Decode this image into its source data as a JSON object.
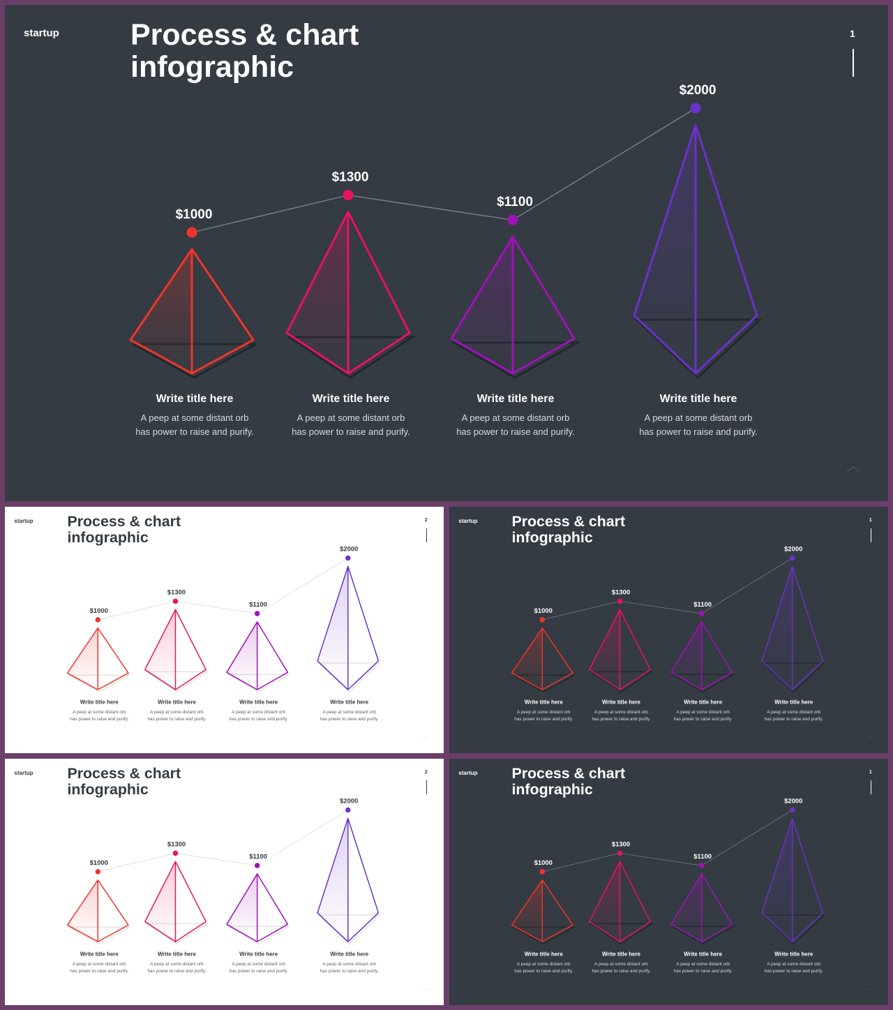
{
  "brand": "startup",
  "title": {
    "line1": "Process & chart",
    "line2": "infographic"
  },
  "item_title": "Write title here",
  "item_desc": {
    "line1": "A peep at some distant orb",
    "line2": "has power to raise and purify."
  },
  "slides": [
    {
      "theme": "dark",
      "page_number": "1"
    },
    {
      "theme": "light",
      "page_number": "2"
    },
    {
      "theme": "dark",
      "page_number": "1"
    },
    {
      "theme": "light",
      "page_number": "2"
    },
    {
      "theme": "dark",
      "page_number": "1"
    }
  ],
  "chart_data": {
    "type": "line",
    "categories": [
      "Write title here",
      "Write title here",
      "Write title here",
      "Write title here"
    ],
    "values": [
      1000,
      1300,
      1100,
      2000
    ],
    "value_labels": [
      "$1000",
      "$1300",
      "$1100",
      "$2000"
    ],
    "colors": [
      "#f0342c",
      "#e8135e",
      "#a012b8",
      "#6a32c8"
    ]
  },
  "icons": {
    "scroll_up": "chevron-up-icon"
  }
}
